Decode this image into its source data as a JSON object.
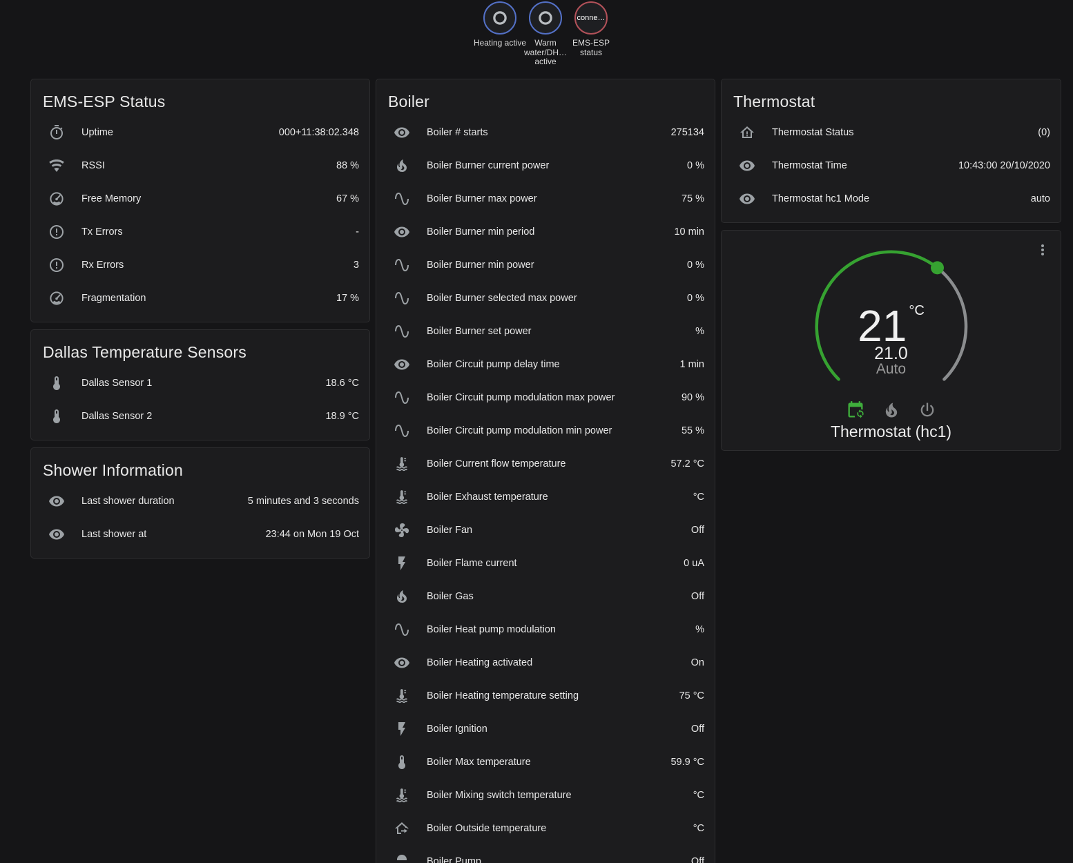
{
  "colors": {
    "accent_green": "#36a231",
    "accent_green_bright": "#3fae3c",
    "dial_track_gray": "#8b8d8f",
    "badge_blue_border": "#5370c6",
    "badge_red_border": "#b25159"
  },
  "badges": [
    {
      "icon": "ring",
      "text": "",
      "label": "Heating active",
      "border": "#5370c6"
    },
    {
      "icon": "ring",
      "text": "",
      "label": "Warm water/DH… active",
      "border": "#5370c6"
    },
    {
      "text": "conne…",
      "label": "EMS-ESP status",
      "border": "#b25159"
    }
  ],
  "cards": {
    "ems": {
      "title": "EMS-ESP Status",
      "rows": [
        {
          "icon": "timer",
          "label": "Uptime",
          "value": "000+11:38:02.348"
        },
        {
          "icon": "wifi",
          "label": "RSSI",
          "value": "88 %"
        },
        {
          "icon": "gauge",
          "label": "Free Memory",
          "value": "67 %"
        },
        {
          "icon": "alert-circle",
          "label": "Tx Errors",
          "value": "-"
        },
        {
          "icon": "alert-circle",
          "label": "Rx Errors",
          "value": "3"
        },
        {
          "icon": "gauge",
          "label": "Fragmentation",
          "value": "17 %"
        }
      ]
    },
    "dallas": {
      "title": "Dallas Temperature Sensors",
      "rows": [
        {
          "icon": "thermometer",
          "label": "Dallas Sensor 1",
          "value": "18.6 °C"
        },
        {
          "icon": "thermometer",
          "label": "Dallas Sensor 2",
          "value": "18.9 °C"
        }
      ]
    },
    "shower": {
      "title": "Shower Information",
      "rows": [
        {
          "icon": "eye",
          "label": "Last shower duration",
          "value": "5 minutes and 3 seconds"
        },
        {
          "icon": "eye",
          "label": "Last shower at",
          "value": "23:44 on Mon 19 Oct"
        }
      ]
    },
    "boiler": {
      "title": "Boiler",
      "rows": [
        {
          "icon": "eye",
          "label": "Boiler # starts",
          "value": "275134"
        },
        {
          "icon": "fire",
          "label": "Boiler Burner current power",
          "value": "0 %"
        },
        {
          "icon": "sine-wave",
          "label": "Boiler Burner max power",
          "value": "75 %"
        },
        {
          "icon": "eye",
          "label": "Boiler Burner min period",
          "value": "10 min"
        },
        {
          "icon": "sine-wave",
          "label": "Boiler Burner min power",
          "value": "0 %"
        },
        {
          "icon": "sine-wave",
          "label": "Boiler Burner selected max power",
          "value": "0 %"
        },
        {
          "icon": "sine-wave",
          "label": "Boiler Burner set power",
          "value": "%"
        },
        {
          "icon": "eye",
          "label": "Boiler Circuit pump delay time",
          "value": "1 min"
        },
        {
          "icon": "sine-wave",
          "label": "Boiler Circuit pump modulation max power",
          "value": "90 %"
        },
        {
          "icon": "sine-wave",
          "label": "Boiler Circuit pump modulation min power",
          "value": "55 %"
        },
        {
          "icon": "coolant-thermometer",
          "label": "Boiler Current flow temperature",
          "value": "57.2 °C"
        },
        {
          "icon": "coolant-thermometer",
          "label": "Boiler Exhaust temperature",
          "value": "°C"
        },
        {
          "icon": "fan",
          "label": "Boiler Fan",
          "value": "Off"
        },
        {
          "icon": "flash",
          "label": "Boiler Flame current",
          "value": "0 uA"
        },
        {
          "icon": "fire",
          "label": "Boiler Gas",
          "value": "Off"
        },
        {
          "icon": "sine-wave",
          "label": "Boiler Heat pump modulation",
          "value": "%"
        },
        {
          "icon": "eye",
          "label": "Boiler Heating activated",
          "value": "On"
        },
        {
          "icon": "coolant-thermometer",
          "label": "Boiler Heating temperature setting",
          "value": "75 °C"
        },
        {
          "icon": "flash",
          "label": "Boiler Ignition",
          "value": "Off"
        },
        {
          "icon": "thermometer",
          "label": "Boiler Max temperature",
          "value": "59.9 °C"
        },
        {
          "icon": "coolant-thermometer",
          "label": "Boiler Mixing switch temperature",
          "value": "°C"
        },
        {
          "icon": "home-export",
          "label": "Boiler Outside temperature",
          "value": "°C"
        },
        {
          "icon": "pump",
          "label": "Boiler Pump",
          "value": "Off"
        }
      ]
    },
    "thermostat": {
      "title": "Thermostat",
      "rows": [
        {
          "icon": "home-alert",
          "label": "Thermostat Status",
          "value": "(0)"
        },
        {
          "icon": "eye",
          "label": "Thermostat Time",
          "value": "10:43:00 20/10/2020"
        },
        {
          "icon": "eye",
          "label": "Thermostat hc1 Mode",
          "value": "auto"
        }
      ]
    }
  },
  "dial": {
    "temperature": "21",
    "unit": "°C",
    "target": "21.0",
    "mode": "Auto",
    "name": "Thermostat (hc1)",
    "accent": "#36a231",
    "modes": [
      {
        "icon": "calendar-sync",
        "active": true
      },
      {
        "icon": "fire",
        "active": false
      },
      {
        "icon": "power",
        "active": false
      }
    ]
  }
}
